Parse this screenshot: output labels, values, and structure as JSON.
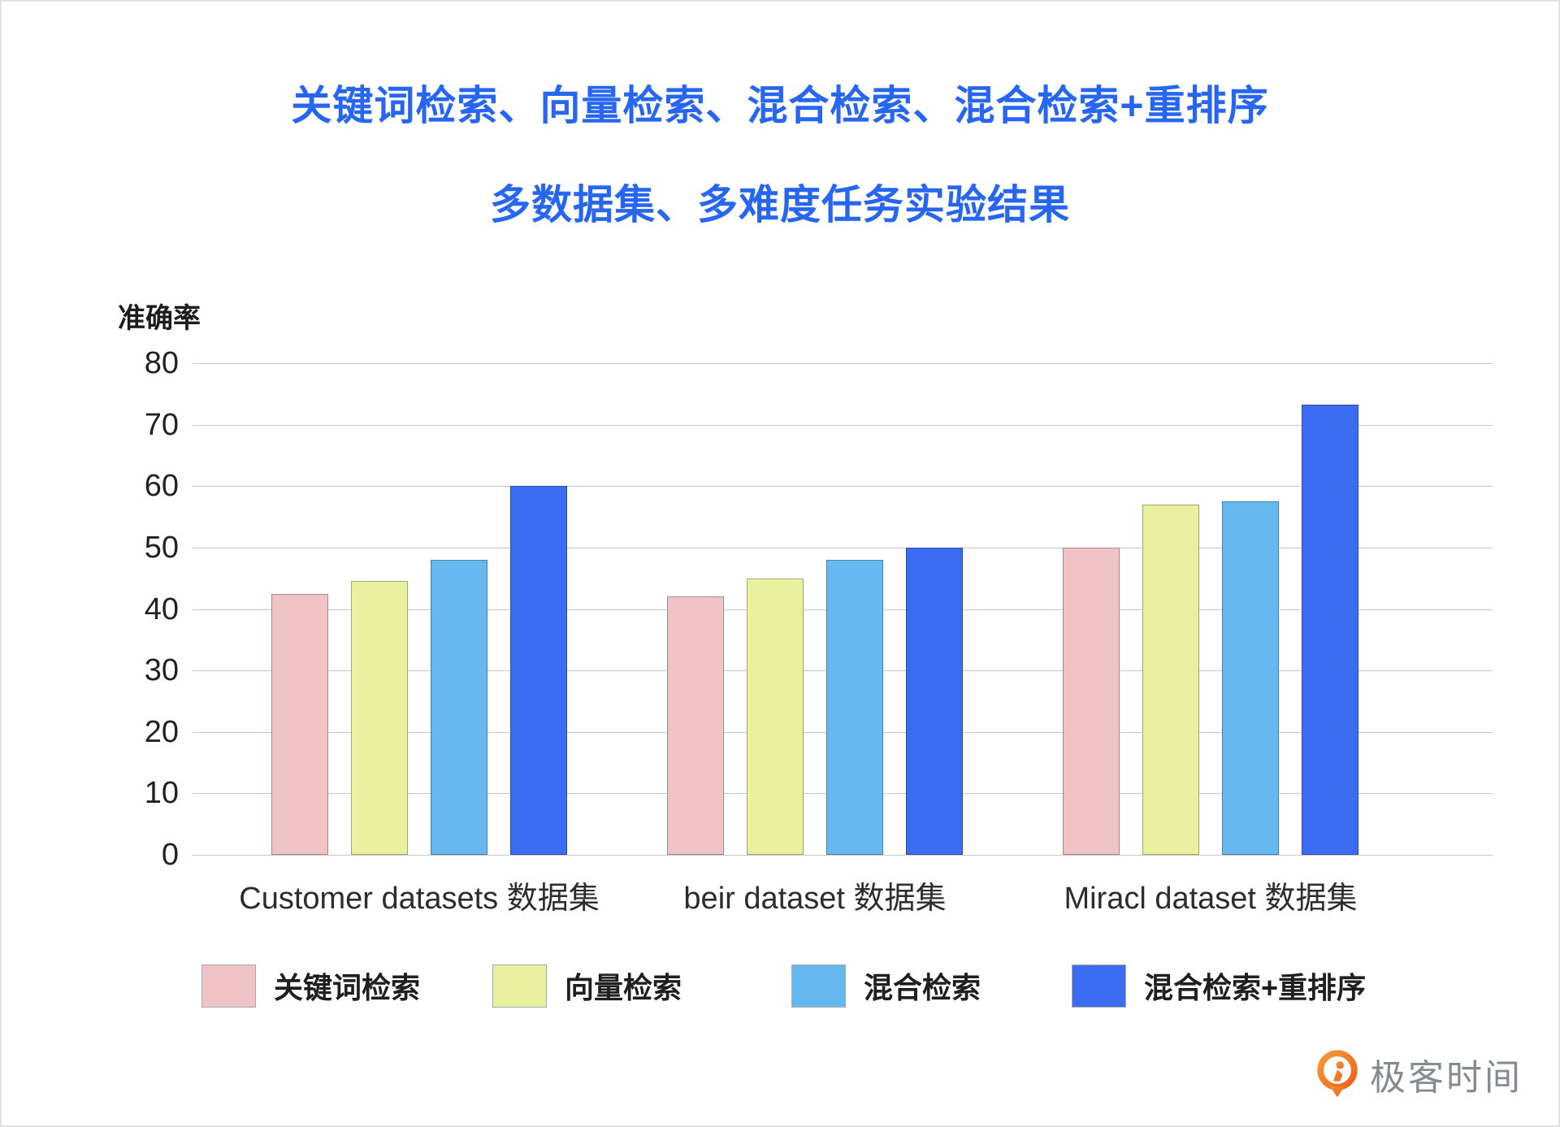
{
  "page": {
    "title": "关键词检索、向量检索、混合检索、混合检索+重排序",
    "subtitle": "多数据集、多难度任务实验结果",
    "title_color": "#2766f2"
  },
  "chart_data": {
    "type": "bar",
    "title": "关键词检索、向量检索、混合检索、混合检索+重排序",
    "subtitle": "多数据集、多难度任务实验结果",
    "ylabel": "准确率",
    "xlabel": "",
    "ylim": [
      0,
      80
    ],
    "yticks": [
      0,
      10,
      20,
      30,
      40,
      50,
      60,
      70,
      80
    ],
    "grid": true,
    "legend_position": "bottom",
    "categories": [
      "Customer datasets 数据集",
      "beir dataset 数据集",
      "Miracl dataset 数据集"
    ],
    "series": [
      {
        "name": "关键词检索",
        "color": "#f0c3c6",
        "values": [
          42.5,
          42,
          50
        ]
      },
      {
        "name": "向量检索",
        "color": "#e9f0a0",
        "values": [
          44.5,
          45,
          57
        ]
      },
      {
        "name": "混合检索",
        "color": "#66b9f0",
        "values": [
          48,
          48,
          57.5
        ]
      },
      {
        "name": "混合检索+重排序",
        "color": "#3b6cf2",
        "values": [
          60,
          50,
          73.3
        ]
      }
    ],
    "gridline_color": "#c7c7c7"
  },
  "branding": {
    "logo_text": "极客时间",
    "logo_color": "#f26d21",
    "logo_text_color": "#868b90"
  }
}
